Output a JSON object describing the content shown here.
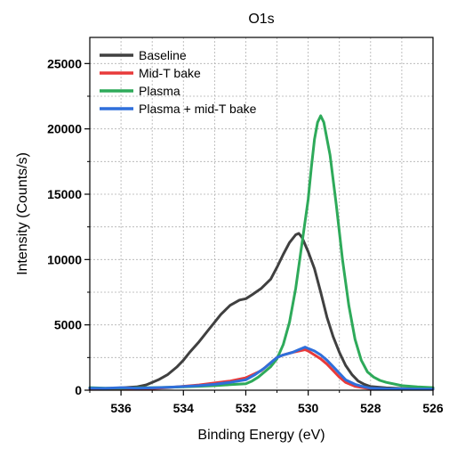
{
  "chart_data": {
    "type": "line",
    "title": "O1s",
    "xlabel": "Binding Energy (eV)",
    "ylabel": "Intensity (Counts/s)",
    "xlim": [
      537,
      526
    ],
    "ylim": [
      0,
      27000
    ],
    "x_reversed": true,
    "xticks": [
      536,
      534,
      532,
      530,
      528,
      526
    ],
    "xtick_labels": [
      "536",
      "534",
      "532",
      "530",
      "528",
      "526"
    ],
    "yticks": [
      0,
      5000,
      10000,
      15000,
      20000,
      25000
    ],
    "ytick_labels": [
      "0",
      "5000",
      "10000",
      "15000",
      "20000",
      "25000"
    ],
    "grid": true,
    "legend_position": "top-left",
    "series": [
      {
        "name": "Baseline",
        "color": "#404040",
        "points": [
          [
            537,
            150
          ],
          [
            536.5,
            120
          ],
          [
            536,
            180
          ],
          [
            535.5,
            250
          ],
          [
            535.2,
            400
          ],
          [
            535,
            600
          ],
          [
            534.8,
            800
          ],
          [
            534.5,
            1200
          ],
          [
            534.2,
            1800
          ],
          [
            534,
            2300
          ],
          [
            533.8,
            2900
          ],
          [
            533.5,
            3700
          ],
          [
            533.2,
            4600
          ],
          [
            533,
            5200
          ],
          [
            532.8,
            5800
          ],
          [
            532.5,
            6500
          ],
          [
            532.2,
            6900
          ],
          [
            532,
            7000
          ],
          [
            531.8,
            7300
          ],
          [
            531.5,
            7800
          ],
          [
            531.2,
            8500
          ],
          [
            531,
            9400
          ],
          [
            530.8,
            10400
          ],
          [
            530.6,
            11300
          ],
          [
            530.4,
            11900
          ],
          [
            530.3,
            12000
          ],
          [
            530.2,
            11700
          ],
          [
            530,
            10600
          ],
          [
            529.8,
            9300
          ],
          [
            529.6,
            7500
          ],
          [
            529.4,
            5600
          ],
          [
            529.2,
            4100
          ],
          [
            529,
            2900
          ],
          [
            528.8,
            1900
          ],
          [
            528.6,
            1200
          ],
          [
            528.4,
            700
          ],
          [
            528.2,
            450
          ],
          [
            528,
            280
          ],
          [
            527.5,
            180
          ],
          [
            527,
            130
          ],
          [
            526.5,
            120
          ],
          [
            526,
            100
          ]
        ]
      },
      {
        "name": "Mid-T bake",
        "color": "#e83a3a",
        "points": [
          [
            537,
            120
          ],
          [
            536,
            120
          ],
          [
            535,
            130
          ],
          [
            534.5,
            200
          ],
          [
            534,
            300
          ],
          [
            533.5,
            400
          ],
          [
            533,
            550
          ],
          [
            532.5,
            700
          ],
          [
            532,
            950
          ],
          [
            531.5,
            1500
          ],
          [
            531.2,
            2100
          ],
          [
            531,
            2500
          ],
          [
            530.8,
            2700
          ],
          [
            530.5,
            2900
          ],
          [
            530.3,
            3000
          ],
          [
            530.1,
            3100
          ],
          [
            530,
            3000
          ],
          [
            529.8,
            2700
          ],
          [
            529.6,
            2400
          ],
          [
            529.4,
            2000
          ],
          [
            529.2,
            1500
          ],
          [
            529,
            1000
          ],
          [
            528.8,
            600
          ],
          [
            528.5,
            300
          ],
          [
            528.2,
            180
          ],
          [
            528,
            120
          ],
          [
            527.5,
            90
          ],
          [
            527,
            80
          ],
          [
            526,
            70
          ]
        ]
      },
      {
        "name": "Plasma",
        "color": "#2eaa5a",
        "points": [
          [
            537,
            200
          ],
          [
            536.5,
            160
          ],
          [
            536,
            150
          ],
          [
            535.5,
            180
          ],
          [
            535,
            200
          ],
          [
            534.5,
            220
          ],
          [
            534,
            250
          ],
          [
            533.5,
            300
          ],
          [
            533,
            350
          ],
          [
            532.5,
            420
          ],
          [
            532,
            500
          ],
          [
            531.8,
            700
          ],
          [
            531.6,
            1000
          ],
          [
            531.4,
            1400
          ],
          [
            531.2,
            1800
          ],
          [
            531,
            2400
          ],
          [
            530.8,
            3500
          ],
          [
            530.6,
            5200
          ],
          [
            530.4,
            7800
          ],
          [
            530.2,
            11200
          ],
          [
            530,
            14600
          ],
          [
            529.9,
            17000
          ],
          [
            529.8,
            19200
          ],
          [
            529.7,
            20500
          ],
          [
            529.6,
            21000
          ],
          [
            529.5,
            20500
          ],
          [
            529.3,
            18000
          ],
          [
            529.1,
            14200
          ],
          [
            528.9,
            10000
          ],
          [
            528.7,
            6500
          ],
          [
            528.5,
            3900
          ],
          [
            528.3,
            2300
          ],
          [
            528.1,
            1400
          ],
          [
            527.9,
            1000
          ],
          [
            527.7,
            750
          ],
          [
            527.5,
            600
          ],
          [
            527.2,
            450
          ],
          [
            527,
            350
          ],
          [
            526.5,
            250
          ],
          [
            526,
            200
          ]
        ]
      },
      {
        "name": "Plasma + mid-T bake",
        "color": "#2f6fdb",
        "points": [
          [
            537,
            150
          ],
          [
            536.5,
            140
          ],
          [
            536,
            200
          ],
          [
            535.5,
            150
          ],
          [
            535,
            180
          ],
          [
            534.5,
            220
          ],
          [
            534,
            280
          ],
          [
            533.5,
            350
          ],
          [
            533,
            450
          ],
          [
            532.5,
            600
          ],
          [
            532,
            800
          ],
          [
            531.7,
            1200
          ],
          [
            531.4,
            1700
          ],
          [
            531.2,
            2100
          ],
          [
            531,
            2500
          ],
          [
            530.8,
            2700
          ],
          [
            530.5,
            2900
          ],
          [
            530.3,
            3100
          ],
          [
            530.1,
            3300
          ],
          [
            530,
            3200
          ],
          [
            529.8,
            3000
          ],
          [
            529.6,
            2700
          ],
          [
            529.4,
            2300
          ],
          [
            529.2,
            1800
          ],
          [
            529,
            1300
          ],
          [
            528.8,
            800
          ],
          [
            528.5,
            450
          ],
          [
            528.2,
            250
          ],
          [
            528,
            150
          ],
          [
            527.5,
            110
          ],
          [
            527,
            100
          ],
          [
            526.5,
            90
          ],
          [
            526,
            80
          ]
        ]
      }
    ]
  }
}
